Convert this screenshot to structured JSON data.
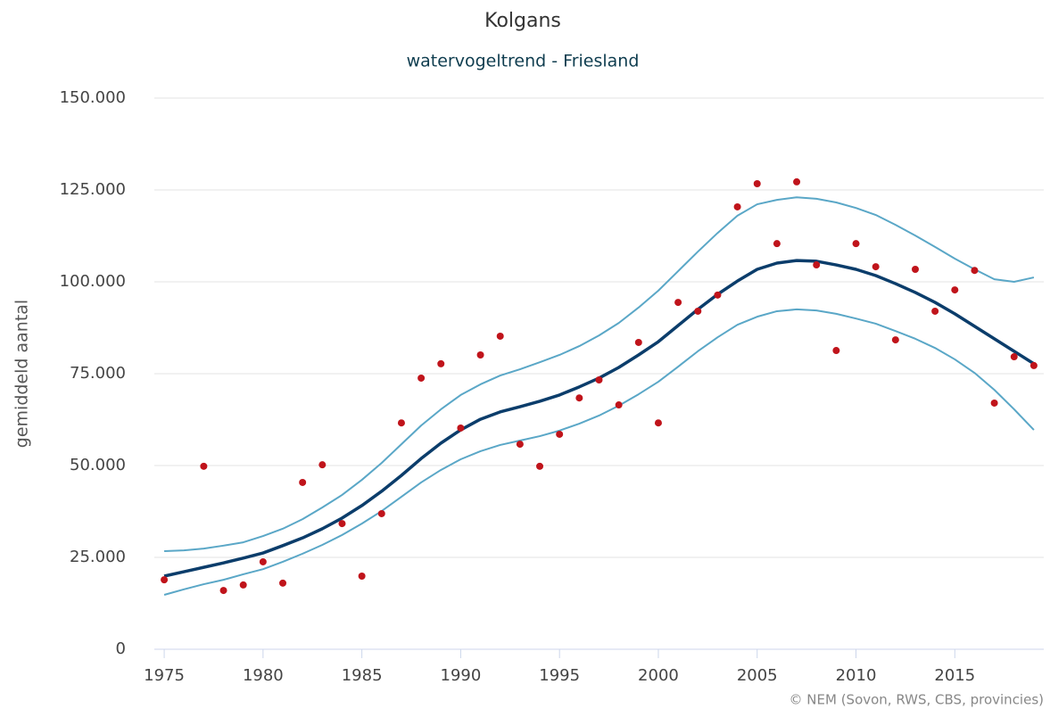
{
  "chart_data": {
    "type": "line",
    "title": "Kolgans",
    "subtitle": "watervogeltrend - Friesland",
    "y_label": "gemiddeld aantal",
    "credits": "© NEM (Sovon, RWS, CBS, provincies)",
    "x": [
      1975,
      1976,
      1977,
      1978,
      1979,
      1980,
      1981,
      1982,
      1983,
      1984,
      1985,
      1986,
      1987,
      1988,
      1989,
      1990,
      1991,
      1992,
      1993,
      1994,
      1995,
      1996,
      1997,
      1998,
      1999,
      2000,
      2001,
      2002,
      2003,
      2004,
      2005,
      2006,
      2007,
      2008,
      2009,
      2010,
      2011,
      2012,
      2013,
      2014,
      2015,
      2016,
      2017,
      2018,
      2019
    ],
    "series": [
      {
        "color": "#5aa7c7",
        "width": 2,
        "values": [
          26700,
          26900,
          27400,
          28200,
          29100,
          30800,
          32800,
          35400,
          38600,
          42000,
          46100,
          50700,
          55800,
          60900,
          65300,
          69200,
          72100,
          74500,
          76200,
          78100,
          80100,
          82500,
          85400,
          88800,
          93000,
          97600,
          102900,
          108200,
          113300,
          118000,
          121100,
          122300,
          123000,
          122600,
          121600,
          120100,
          118200,
          115500,
          112600,
          109500,
          106300,
          103400,
          100700,
          100000,
          101200
        ]
      },
      {
        "color": "#5aa7c7",
        "width": 2,
        "values": [
          14800,
          16300,
          17700,
          18900,
          20400,
          21800,
          23800,
          26000,
          28400,
          31100,
          34200,
          37600,
          41500,
          45400,
          48800,
          51700,
          53900,
          55600,
          56800,
          58000,
          59500,
          61400,
          63600,
          66300,
          69400,
          72800,
          76900,
          81100,
          84900,
          88300,
          90500,
          92000,
          92500,
          92200,
          91300,
          90000,
          88600,
          86600,
          84500,
          82000,
          78900,
          75200,
          70600,
          65300,
          59700
        ]
      },
      {
        "color": "#0b3d6b",
        "width": 3.5,
        "values": [
          19900,
          21100,
          22300,
          23500,
          24800,
          26200,
          28200,
          30300,
          32800,
          35700,
          39100,
          43000,
          47300,
          51900,
          56100,
          59700,
          62600,
          64600,
          66000,
          67500,
          69200,
          71400,
          73800,
          76700,
          80100,
          83700,
          88100,
          92500,
          96600,
          100200,
          103400,
          105100,
          105800,
          105600,
          104600,
          103400,
          101700,
          99500,
          97100,
          94400,
          91300,
          87900,
          84500,
          81100,
          77700
        ]
      },
      {
        "type": "scatter",
        "color": "#c0141b",
        "x": [
          1975,
          1977,
          1978,
          1979,
          1980,
          1981,
          1982,
          1983,
          1984,
          1985,
          1986,
          1987,
          1988,
          1989,
          1990,
          1991,
          1992,
          1993,
          1994,
          1995,
          1996,
          1997,
          1998,
          1999,
          2000,
          2001,
          2002,
          2003,
          2004,
          2005,
          2006,
          2007,
          2008,
          2009,
          2010,
          2011,
          2012,
          2013,
          2014,
          2015,
          2016,
          2017,
          2018,
          2019
        ],
        "values": [
          18900,
          49800,
          16000,
          17500,
          23800,
          18000,
          45400,
          50200,
          34200,
          19900,
          36900,
          61600,
          73800,
          77700,
          60200,
          80100,
          85200,
          55800,
          49800,
          58500,
          68400,
          73300,
          66500,
          83500,
          61600,
          94400,
          92000,
          96400,
          120400,
          126700,
          110400,
          127200,
          104600,
          81300,
          110400,
          104100,
          84200,
          103400,
          92000,
          97800,
          103100,
          67000,
          79600,
          77200
        ]
      }
    ],
    "xlim": [
      1974.5,
      2019.5
    ],
    "xticks": [
      1975,
      1980,
      1985,
      1990,
      1995,
      2000,
      2005,
      2010,
      2015
    ],
    "ylim": [
      0,
      150000
    ],
    "yticks": [
      0,
      {
        "value": 25000,
        "label": "25.000"
      },
      {
        "value": 50000,
        "label": "50.000"
      },
      {
        "value": 75000,
        "label": "75.000"
      },
      {
        "value": 100000,
        "label": "100.000"
      },
      {
        "value": 125000,
        "label": "125.000"
      },
      {
        "value": 150000,
        "label": "150.000"
      }
    ],
    "grid": true
  }
}
